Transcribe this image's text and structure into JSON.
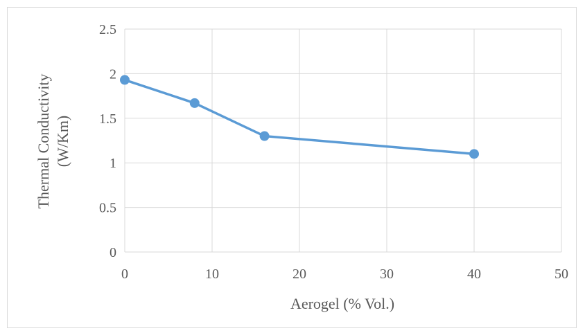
{
  "chart_data": {
    "type": "line",
    "title": "",
    "xlabel": "Aerogel (% Vol.)",
    "ylabel_line1": "Thermal Conductivity",
    "ylabel_line2": "(W/Km)",
    "xlim": [
      0,
      50
    ],
    "ylim": [
      0,
      2.5
    ],
    "x_ticks": [
      "0",
      "10",
      "20",
      "30",
      "40",
      "50"
    ],
    "y_ticks": [
      "0",
      "0.5",
      "1",
      "1.5",
      "2",
      "2.5"
    ],
    "grid": true,
    "legend": "none",
    "series": [
      {
        "color": "#5b9bd5",
        "x": [
          0,
          8,
          16,
          40
        ],
        "y": [
          1.93,
          1.67,
          1.3,
          1.1
        ]
      }
    ]
  }
}
